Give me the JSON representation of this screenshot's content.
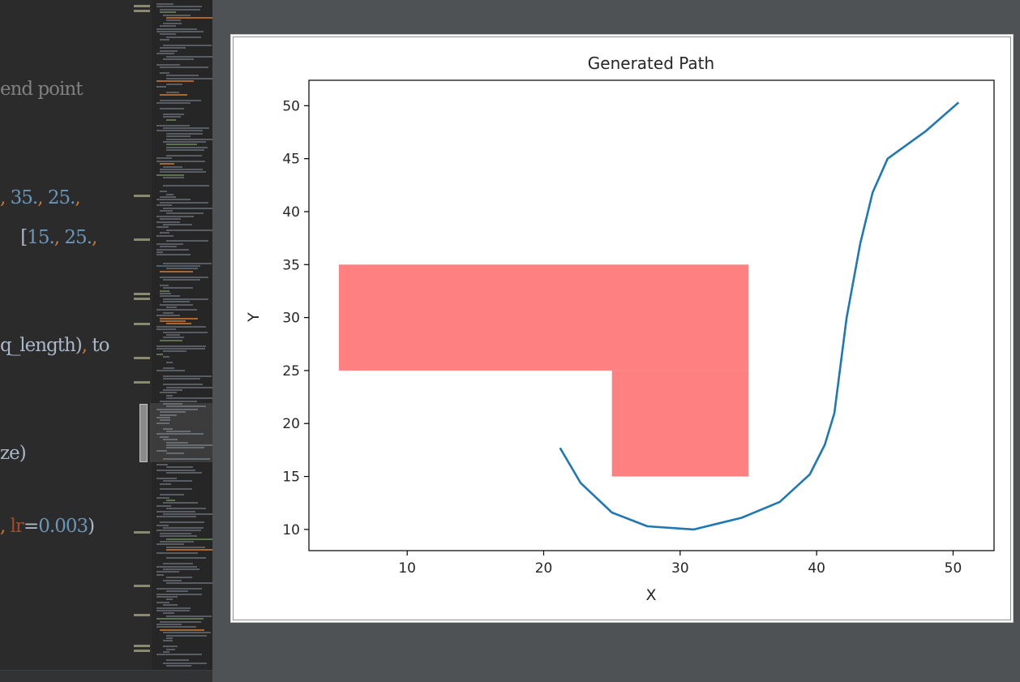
{
  "editor": {
    "lines": [
      {
        "top": 96,
        "tokens": [
          {
            "t": "end point",
            "c": "comment"
          }
        ]
      },
      {
        "top": 230,
        "tokens": [
          {
            "t": ", ",
            "c": "punct"
          },
          {
            "t": "35.",
            "c": "num"
          },
          {
            "t": ", ",
            "c": "punct"
          },
          {
            "t": "25.",
            "c": "num"
          },
          {
            "t": ",",
            "c": "punct"
          }
        ]
      },
      {
        "top": 279,
        "tokens": [
          {
            "t": "    [",
            "c": "text"
          },
          {
            "t": "15.",
            "c": "num"
          },
          {
            "t": ", ",
            "c": "punct"
          },
          {
            "t": "25.",
            "c": "num"
          },
          {
            "t": ",",
            "c": "punct"
          }
        ]
      },
      {
        "top": 412,
        "tokens": [
          {
            "t": "q_length)",
            "c": "text"
          },
          {
            "t": ", ",
            "c": "punct"
          },
          {
            "t": "to",
            "c": "text"
          }
        ]
      },
      {
        "top": 545,
        "tokens": [
          {
            "t": "ze)",
            "c": "text"
          }
        ]
      },
      {
        "top": 635,
        "tokens": [
          {
            "t": ", ",
            "c": "punct"
          },
          {
            "t": "lr",
            "c": "kw"
          },
          {
            "t": "=",
            "c": "text"
          },
          {
            "t": "0.003",
            "c": "num"
          },
          {
            "t": ")",
            "c": "text"
          }
        ]
      }
    ],
    "fold_marks": [
      {
        "top": 6,
        "double": true
      },
      {
        "top": 240,
        "double": false
      },
      {
        "top": 294,
        "double": false
      },
      {
        "top": 361,
        "double": true
      },
      {
        "top": 398,
        "double": false
      },
      {
        "top": 440,
        "double": false
      },
      {
        "top": 470,
        "double": false
      },
      {
        "top": 655,
        "double": false
      },
      {
        "top": 721,
        "double": false
      },
      {
        "top": 757,
        "double": false
      },
      {
        "top": 795,
        "double": true
      }
    ]
  },
  "chart_data": {
    "type": "line",
    "title": "Generated Path",
    "xlabel": "X",
    "ylabel": "Y",
    "xlim": [
      2.8,
      53.0
    ],
    "ylim": [
      8.0,
      52.4
    ],
    "xticks": [
      10,
      20,
      30,
      40,
      50
    ],
    "yticks": [
      10,
      15,
      20,
      25,
      30,
      35,
      40,
      45,
      50
    ],
    "grid": false,
    "obstacles": [
      {
        "x": [
          5,
          35
        ],
        "y": [
          25,
          35
        ],
        "color": "#ff8080"
      },
      {
        "x": [
          25,
          35
        ],
        "y": [
          15,
          25
        ],
        "color": "#ff8080"
      }
    ],
    "series": [
      {
        "color": "#1f77b4",
        "x": [
          21.2,
          22.7,
          25.0,
          27.6,
          31.0,
          34.5,
          37.3,
          39.5,
          40.6,
          41.3,
          42.2,
          43.2,
          44.1,
          45.2,
          48.0,
          50.4
        ],
        "y": [
          17.7,
          14.4,
          11.6,
          10.3,
          10.0,
          11.1,
          12.6,
          15.2,
          18.0,
          21.0,
          30.0,
          37.0,
          41.8,
          45.0,
          47.6,
          50.3
        ]
      }
    ]
  }
}
